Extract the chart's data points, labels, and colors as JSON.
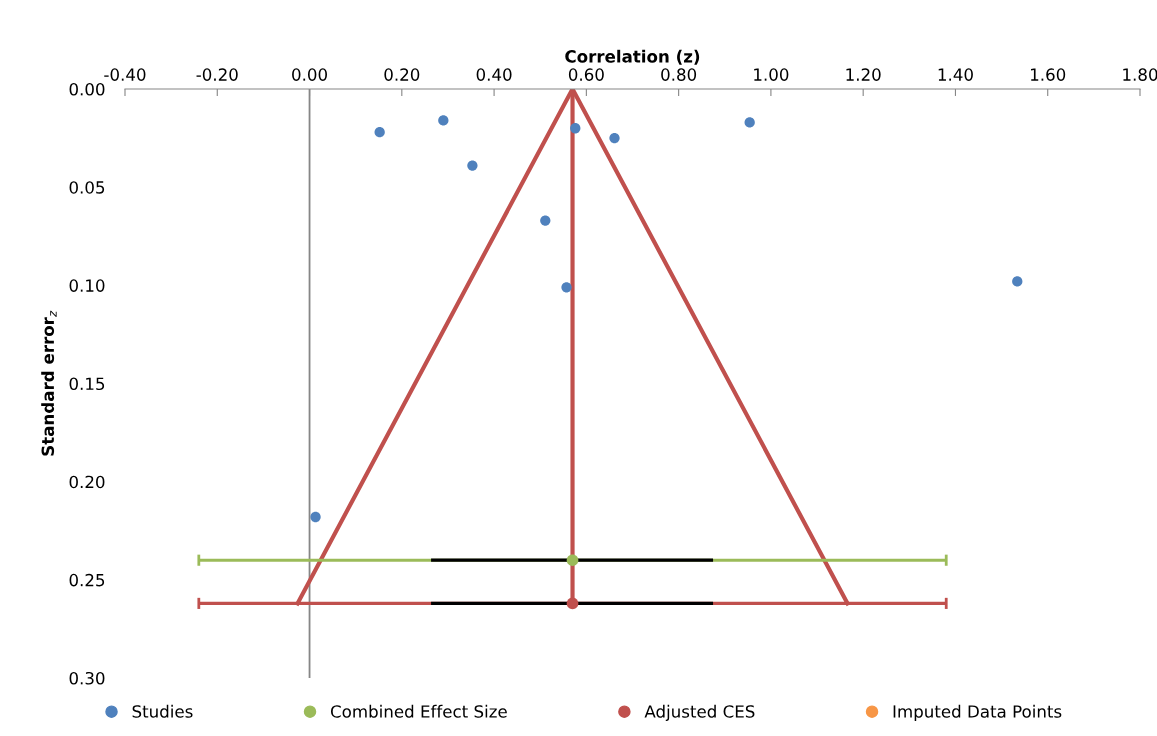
{
  "chart_data": {
    "type": "scatter",
    "xlabel": "Correlation (z)",
    "ylabel": "Standard error$_{z}$",
    "xlim": [
      -0.4,
      1.8
    ],
    "xticks": [
      {
        "value": -0.4,
        "label": "-0.40"
      },
      {
        "value": -0.2,
        "label": "-0.20"
      },
      {
        "value": 0,
        "label": "0.00"
      },
      {
        "value": 0.2,
        "label": "0.20"
      },
      {
        "value": 0.4,
        "label": "0.40"
      },
      {
        "value": 0.6,
        "label": "0.60"
      },
      {
        "value": 0.8,
        "label": "0.80"
      },
      {
        "value": 1.0,
        "label": "1.00"
      },
      {
        "value": 1.2,
        "label": "1.20"
      },
      {
        "value": 1.4,
        "label": "1.40"
      },
      {
        "value": 1.6,
        "label": "1.60"
      },
      {
        "value": 1.8,
        "label": "1.80"
      }
    ],
    "ylim": [
      0.3,
      0
    ],
    "yticks": [
      {
        "value": 0,
        "label": "0.00"
      },
      {
        "value": 0.05,
        "label": "0.05"
      },
      {
        "value": 0.1,
        "label": "0.10"
      },
      {
        "value": 0.15,
        "label": "0.15"
      },
      {
        "value": 0.2,
        "label": "0.20"
      },
      {
        "value": 0.25,
        "label": "0.25"
      },
      {
        "value": 0.3,
        "label": "0.30"
      }
    ],
    "grid": false,
    "legend": "bottom",
    "marker": "circle",
    "series": [
      {
        "type": "line",
        "color": "#c0504d",
        "marker": "none",
        "x": [
          -0.026,
          0.57,
          1.166
        ],
        "values": [
          0.262,
          0,
          0.262
        ]
      },
      {
        "type": "line",
        "color": "#c0504d",
        "marker": "none",
        "x": [
          0.57,
          0.57
        ],
        "values": [
          0,
          0.262
        ]
      },
      {
        "name": "Studies",
        "color": "#4f81bd",
        "x": [
          0.152,
          0.29,
          0.353,
          0.511,
          0.576,
          0.557,
          0.661,
          0.954,
          1.534,
          0.013
        ],
        "values": [
          0.022,
          0.016,
          0.039,
          0.067,
          0.02,
          0.101,
          0.025,
          0.017,
          0.098,
          0.218
        ]
      },
      {
        "name": "Combined Effect Size",
        "color": "#9bbb59",
        "x": [
          0.57
        ],
        "values": [
          0.24
        ],
        "xerrors": [
          [
            -0.24,
            1.38
          ]
        ]
      },
      {
        "type": "line",
        "color": "#000000",
        "marker": "none",
        "x": [
          0.267,
          0.871
        ],
        "values": [
          0.24,
          0.24
        ]
      },
      {
        "name": "Adjusted CES",
        "color": "#c0504d",
        "x": [
          0.57
        ],
        "values": [
          0.262
        ],
        "xerrors": [
          [
            -0.24,
            1.38
          ]
        ]
      },
      {
        "type": "line",
        "color": "#000000",
        "marker": "none",
        "x": [
          0.267,
          0.871
        ],
        "values": [
          0.262,
          0.262
        ]
      },
      {
        "name": "Imputed Data Points",
        "color": "#f79646"
      }
    ],
    "ref_lines": [
      {
        "axis": "x",
        "value": 0,
        "color": "#868686"
      }
    ]
  }
}
